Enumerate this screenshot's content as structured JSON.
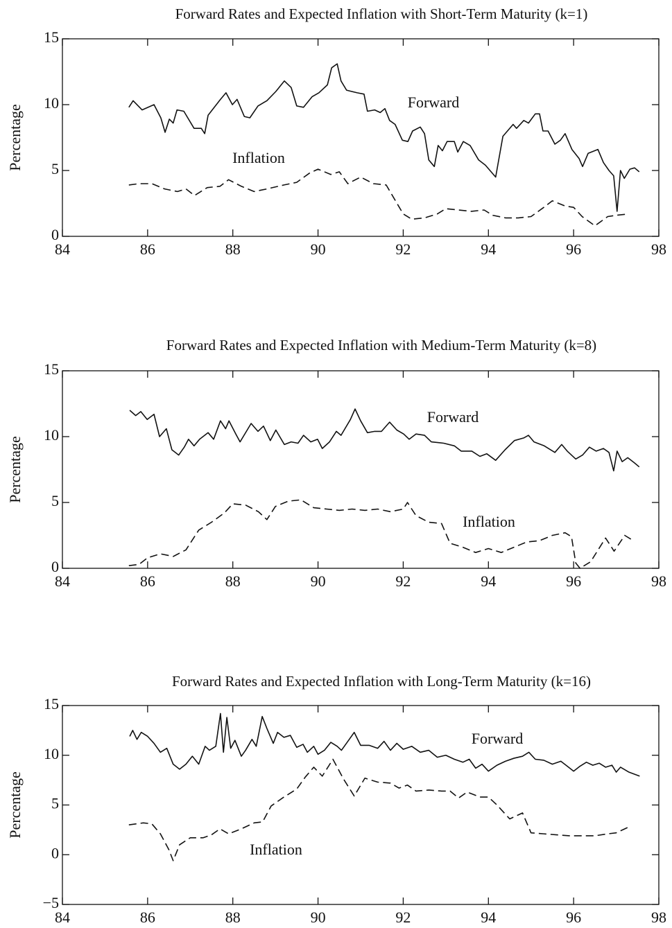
{
  "chart_data": [
    {
      "type": "line",
      "title": "Forward Rates and Expected Inflation with Short-Term Maturity (k=1)",
      "ylabel": "Percentage",
      "xlim": [
        84,
        98
      ],
      "xticks": [
        84,
        86,
        88,
        90,
        92,
        94,
        96,
        98
      ],
      "ylim": [
        0,
        15
      ],
      "yticks": [
        0,
        5,
        10,
        15
      ],
      "series": [
        {
          "name": "Forward",
          "color": "#111111",
          "dashed": false,
          "x": [
            85.56,
            85.66,
            85.87,
            86.15,
            86.31,
            86.41,
            86.51,
            86.6,
            86.69,
            86.85,
            87.09,
            87.26,
            87.34,
            87.42,
            87.71,
            87.84,
            87.99,
            88.1,
            88.27,
            88.4,
            88.59,
            88.8,
            89.01,
            89.21,
            89.37,
            89.5,
            89.66,
            89.86,
            90.02,
            90.22,
            90.32,
            90.45,
            90.54,
            90.67,
            90.92,
            91.08,
            91.16,
            91.33,
            91.46,
            91.57,
            91.68,
            91.81,
            91.98,
            92.11,
            92.22,
            92.4,
            92.5,
            92.6,
            92.73,
            92.82,
            92.92,
            93.03,
            93.2,
            93.28,
            93.41,
            93.57,
            93.77,
            93.93,
            94.17,
            94.34,
            94.58,
            94.66,
            94.83,
            94.94,
            95.1,
            95.2,
            95.28,
            95.4,
            95.56,
            95.69,
            95.8,
            95.96,
            96.13,
            96.21,
            96.34,
            96.57,
            96.7,
            96.83,
            96.94,
            97.02,
            97.1,
            97.19,
            97.32,
            97.43,
            97.54
          ],
          "values": [
            9.8,
            10.3,
            9.6,
            10.0,
            9.0,
            7.9,
            8.9,
            8.6,
            9.6,
            9.5,
            8.2,
            8.2,
            7.8,
            9.2,
            10.4,
            10.9,
            10.0,
            10.4,
            9.1,
            9.0,
            9.9,
            10.3,
            11.0,
            11.8,
            11.3,
            9.9,
            9.8,
            10.6,
            10.9,
            11.5,
            12.8,
            13.1,
            11.8,
            11.1,
            10.9,
            10.8,
            9.5,
            9.6,
            9.4,
            9.7,
            8.8,
            8.5,
            7.3,
            7.2,
            8.0,
            8.3,
            7.8,
            5.8,
            5.3,
            6.9,
            6.5,
            7.2,
            7.2,
            6.4,
            7.2,
            6.9,
            5.8,
            5.4,
            4.5,
            7.6,
            8.5,
            8.2,
            8.8,
            8.6,
            9.3,
            9.3,
            8.0,
            8.0,
            7.0,
            7.3,
            7.8,
            6.6,
            5.9,
            5.3,
            6.3,
            6.6,
            5.6,
            5.0,
            4.6,
            1.9,
            5.0,
            4.4,
            5.1,
            5.2,
            4.9
          ]
        },
        {
          "name": "Inflation",
          "color": "#111111",
          "dashed": true,
          "x": [
            85.56,
            85.8,
            86.1,
            86.4,
            86.7,
            86.9,
            87.1,
            87.4,
            87.7,
            87.9,
            88.2,
            88.5,
            88.8,
            89.2,
            89.5,
            89.8,
            90.0,
            90.3,
            90.5,
            90.7,
            91.0,
            91.3,
            91.6,
            91.8,
            92.0,
            92.2,
            92.5,
            92.8,
            93.0,
            93.3,
            93.6,
            93.9,
            94.1,
            94.4,
            94.7,
            95.0,
            95.3,
            95.5,
            95.8,
            96.0,
            96.2,
            96.5,
            96.8,
            97.0,
            97.3
          ],
          "values": [
            3.9,
            4.0,
            4.0,
            3.6,
            3.4,
            3.6,
            3.1,
            3.7,
            3.8,
            4.3,
            3.8,
            3.4,
            3.6,
            3.9,
            4.1,
            4.8,
            5.1,
            4.7,
            4.9,
            4.0,
            4.5,
            4.0,
            3.9,
            2.8,
            1.7,
            1.3,
            1.4,
            1.7,
            2.1,
            2.0,
            1.9,
            2.0,
            1.6,
            1.4,
            1.4,
            1.5,
            2.2,
            2.7,
            2.3,
            2.2,
            1.5,
            0.8,
            1.5,
            1.6,
            1.7
          ]
        }
      ]
    },
    {
      "type": "line",
      "title": "Forward Rates and Expected Inflation with Medium-Term Maturity (k=8)",
      "ylabel": "Percentage",
      "xlim": [
        84,
        98
      ],
      "xticks": [
        84,
        86,
        88,
        90,
        92,
        94,
        96,
        98
      ],
      "ylim": [
        0,
        15
      ],
      "yticks": [
        0,
        5,
        10,
        15
      ],
      "series": [
        {
          "name": "Forward",
          "color": "#111111",
          "dashed": false,
          "x": [
            85.58,
            85.72,
            85.84,
            85.99,
            86.15,
            86.28,
            86.44,
            86.57,
            86.73,
            86.86,
            86.96,
            87.09,
            87.22,
            87.42,
            87.55,
            87.71,
            87.83,
            87.91,
            88.07,
            88.17,
            88.43,
            88.59,
            88.72,
            88.88,
            89.01,
            89.21,
            89.37,
            89.53,
            89.66,
            89.83,
            89.99,
            90.1,
            90.27,
            90.43,
            90.54,
            90.76,
            90.87,
            91.0,
            91.16,
            91.33,
            91.49,
            91.68,
            91.85,
            92.01,
            92.14,
            92.3,
            92.5,
            92.66,
            92.95,
            93.2,
            93.36,
            93.61,
            93.8,
            93.96,
            94.17,
            94.39,
            94.61,
            94.83,
            94.94,
            95.07,
            95.31,
            95.56,
            95.72,
            95.85,
            96.05,
            96.21,
            96.37,
            96.53,
            96.7,
            96.83,
            96.94,
            97.02,
            97.14,
            97.27,
            97.43,
            97.54
          ],
          "values": [
            12.0,
            11.6,
            11.9,
            11.3,
            11.7,
            10.0,
            10.6,
            9.0,
            8.6,
            9.2,
            9.8,
            9.3,
            9.8,
            10.3,
            9.8,
            11.2,
            10.6,
            11.2,
            10.2,
            9.6,
            11.0,
            10.4,
            10.8,
            9.7,
            10.5,
            9.4,
            9.6,
            9.5,
            10.1,
            9.6,
            9.8,
            9.1,
            9.6,
            10.4,
            10.1,
            11.3,
            12.1,
            11.2,
            10.3,
            10.4,
            10.4,
            11.1,
            10.5,
            10.2,
            9.8,
            10.2,
            10.1,
            9.6,
            9.5,
            9.3,
            8.9,
            8.9,
            8.5,
            8.7,
            8.2,
            9.0,
            9.7,
            9.9,
            10.1,
            9.6,
            9.3,
            8.8,
            9.4,
            8.9,
            8.3,
            8.6,
            9.2,
            8.9,
            9.1,
            8.8,
            7.4,
            8.9,
            8.1,
            8.4,
            8.0,
            7.7
          ]
        },
        {
          "name": "Inflation",
          "color": "#111111",
          "dashed": true,
          "x": [
            85.56,
            85.8,
            86.0,
            86.3,
            86.6,
            86.9,
            87.2,
            87.5,
            87.8,
            88.0,
            88.3,
            88.6,
            88.8,
            89.0,
            89.3,
            89.6,
            89.9,
            90.2,
            90.5,
            90.8,
            91.1,
            91.4,
            91.7,
            92.0,
            92.1,
            92.3,
            92.6,
            92.9,
            93.1,
            93.4,
            93.7,
            94.0,
            94.3,
            94.6,
            94.9,
            95.2,
            95.5,
            95.8,
            95.95,
            96.05,
            96.15,
            96.4,
            96.75,
            96.95,
            97.2,
            97.4
          ],
          "values": [
            0.2,
            0.3,
            0.8,
            1.1,
            0.9,
            1.4,
            2.9,
            3.5,
            4.2,
            4.9,
            4.8,
            4.3,
            3.7,
            4.7,
            5.1,
            5.2,
            4.6,
            4.5,
            4.4,
            4.5,
            4.4,
            4.5,
            4.3,
            4.5,
            5.0,
            4.0,
            3.5,
            3.4,
            1.9,
            1.6,
            1.2,
            1.5,
            1.2,
            1.6,
            2.0,
            2.1,
            2.5,
            2.7,
            2.4,
            0.4,
            0.0,
            0.5,
            2.3,
            1.3,
            2.5,
            2.1
          ]
        }
      ]
    },
    {
      "type": "line",
      "title": "Forward Rates and Expected Inflation with Long-Term Maturity (k=16)",
      "ylabel": "Percentage",
      "xlim": [
        84,
        98
      ],
      "xticks": [
        84,
        86,
        88,
        90,
        92,
        94,
        96,
        98
      ],
      "ylim": [
        -5,
        15
      ],
      "yticks": [
        {
          "value": -5,
          "label": "−5"
        },
        0,
        5,
        10,
        15
      ],
      "series": [
        {
          "name": "Forward",
          "color": "#111111",
          "dashed": false,
          "x": [
            85.58,
            85.65,
            85.75,
            85.85,
            86.0,
            86.15,
            86.3,
            86.45,
            86.6,
            86.75,
            86.9,
            87.05,
            87.2,
            87.35,
            87.45,
            87.6,
            87.71,
            87.78,
            87.86,
            87.95,
            88.05,
            88.2,
            88.3,
            88.45,
            88.55,
            88.69,
            88.8,
            88.95,
            89.05,
            89.2,
            89.35,
            89.5,
            89.65,
            89.75,
            89.9,
            90.0,
            90.15,
            90.3,
            90.45,
            90.55,
            90.7,
            90.85,
            91.0,
            91.2,
            91.4,
            91.55,
            91.7,
            91.85,
            92.0,
            92.2,
            92.4,
            92.6,
            92.8,
            93.0,
            93.2,
            93.4,
            93.55,
            93.7,
            93.85,
            94.0,
            94.2,
            94.4,
            94.6,
            94.8,
            94.95,
            95.1,
            95.3,
            95.5,
            95.7,
            95.85,
            96.0,
            96.15,
            96.3,
            96.45,
            96.6,
            96.75,
            96.9,
            97.0,
            97.1,
            97.3,
            97.55
          ],
          "values": [
            11.9,
            12.5,
            11.6,
            12.3,
            11.9,
            11.2,
            10.3,
            10.7,
            9.1,
            8.6,
            9.1,
            9.9,
            9.1,
            10.9,
            10.5,
            10.9,
            14.2,
            10.3,
            13.8,
            10.7,
            11.5,
            9.9,
            10.5,
            11.6,
            10.9,
            13.9,
            12.7,
            11.2,
            12.3,
            11.8,
            12.0,
            10.8,
            11.1,
            10.3,
            10.9,
            10.1,
            10.5,
            11.3,
            10.9,
            10.5,
            11.4,
            12.3,
            11.0,
            11.0,
            10.7,
            11.4,
            10.5,
            11.2,
            10.6,
            10.9,
            10.3,
            10.5,
            9.8,
            10.0,
            9.6,
            9.3,
            9.6,
            8.7,
            9.1,
            8.4,
            9.0,
            9.4,
            9.7,
            9.9,
            10.3,
            9.6,
            9.5,
            9.1,
            9.4,
            8.9,
            8.4,
            8.9,
            9.3,
            9.0,
            9.2,
            8.8,
            9.0,
            8.3,
            8.8,
            8.3,
            7.9
          ]
        },
        {
          "name": "Inflation",
          "color": "#111111",
          "dashed": true,
          "x": [
            85.56,
            85.9,
            86.1,
            86.3,
            86.5,
            86.6,
            86.75,
            87.0,
            87.3,
            87.5,
            87.7,
            87.9,
            88.2,
            88.5,
            88.7,
            88.9,
            89.2,
            89.5,
            89.7,
            89.9,
            90.1,
            90.35,
            90.6,
            90.85,
            91.1,
            91.4,
            91.7,
            91.9,
            92.1,
            92.3,
            92.6,
            92.9,
            93.1,
            93.3,
            93.5,
            93.8,
            94.0,
            94.2,
            94.5,
            94.8,
            95.0,
            95.3,
            95.6,
            95.9,
            96.2,
            96.5,
            96.8,
            97.0,
            97.3
          ],
          "values": [
            3.0,
            3.2,
            3.1,
            2.1,
            0.5,
            -0.6,
            1.0,
            1.7,
            1.7,
            2.0,
            2.6,
            2.1,
            2.6,
            3.2,
            3.3,
            4.9,
            5.8,
            6.6,
            7.8,
            8.8,
            7.9,
            9.6,
            7.6,
            5.9,
            7.7,
            7.3,
            7.2,
            6.7,
            7.0,
            6.4,
            6.5,
            6.4,
            6.4,
            5.7,
            6.3,
            5.8,
            5.8,
            5.0,
            3.6,
            4.2,
            2.2,
            2.1,
            2.0,
            1.9,
            1.9,
            1.9,
            2.1,
            2.2,
            2.8
          ]
        }
      ]
    }
  ]
}
